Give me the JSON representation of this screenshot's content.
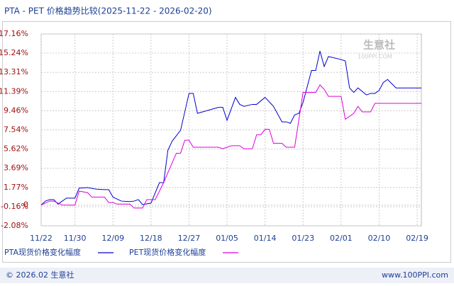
{
  "chart_data": {
    "type": "line",
    "title": "PTA - PET 价格趋势比较(2025-11-22 - 2026-02-20)",
    "watermark": "生意社",
    "watermark_sub": "100PPI.COM",
    "footer_left": "© 2026.02 生意社",
    "footer_right": "www.100PPI.com",
    "xlim": [
      0,
      90
    ],
    "xticks": [
      {
        "value": 0,
        "label": "11/22"
      },
      {
        "value": 8,
        "label": "11/30"
      },
      {
        "value": 17,
        "label": "12/09"
      },
      {
        "value": 26,
        "label": "12/18"
      },
      {
        "value": 35,
        "label": "12/27"
      },
      {
        "value": 44,
        "label": "01/05"
      },
      {
        "value": 53,
        "label": "01/14"
      },
      {
        "value": 62,
        "label": "01/23"
      },
      {
        "value": 71,
        "label": "02/01"
      },
      {
        "value": 80,
        "label": "02/10"
      },
      {
        "value": 89,
        "label": "02/19"
      }
    ],
    "ylim": [
      -2.08,
      17.16
    ],
    "yticks": [
      {
        "value": 17.16,
        "label": "17.16%"
      },
      {
        "value": 15.24,
        "label": "15.24%"
      },
      {
        "value": 13.31,
        "label": "13.31%"
      },
      {
        "value": 11.39,
        "label": "11.39%"
      },
      {
        "value": 9.46,
        "label": "9.46%"
      },
      {
        "value": 7.54,
        "label": "7.54%"
      },
      {
        "value": 5.62,
        "label": "5.62%"
      },
      {
        "value": 3.69,
        "label": "3.69%"
      },
      {
        "value": 1.77,
        "label": "1.77%"
      },
      {
        "value": 0,
        "label": "0"
      },
      {
        "value": -0.16,
        "label": "-0.16%"
      },
      {
        "value": -2.08,
        "label": "-2.08%"
      }
    ],
    "grid": true,
    "series": [
      {
        "name": "PTA现货价格变化幅度",
        "color": "#0000cc",
        "x": [
          0,
          1,
          2,
          3,
          4,
          6,
          8,
          9,
          11,
          13,
          15,
          16,
          17,
          19,
          21,
          22,
          23,
          24,
          26,
          28,
          29,
          30,
          31,
          33,
          35,
          36,
          37,
          42,
          43,
          44,
          46,
          47,
          48,
          50,
          51,
          53,
          55,
          57,
          58,
          59,
          60,
          61,
          62,
          64,
          65,
          66,
          67,
          68,
          71,
          72,
          73,
          74,
          75,
          77,
          78,
          79,
          80,
          81,
          82,
          84,
          88,
          90
        ],
        "values": [
          0,
          0.4,
          0.55,
          0.55,
          0.1,
          0.7,
          0.7,
          1.7,
          1.75,
          1.6,
          1.55,
          1.55,
          0.8,
          0.4,
          0.35,
          0.4,
          0.55,
          0.05,
          0.2,
          2.25,
          2.25,
          5.5,
          6.4,
          7.5,
          11.2,
          11.2,
          9.2,
          9.8,
          9.8,
          8.5,
          10.8,
          10.1,
          9.9,
          10.1,
          10.1,
          10.8,
          9.9,
          8.35,
          8.35,
          8.2,
          9.05,
          9.2,
          10.3,
          13.5,
          13.5,
          15.45,
          13.9,
          14.9,
          14.6,
          14.45,
          11.75,
          11.3,
          11.75,
          11.05,
          11.2,
          11.2,
          11.5,
          12.3,
          12.6,
          11.75,
          11.75,
          11.75
        ]
      },
      {
        "name": "PET现货价格变化幅度",
        "color": "#dd00dd",
        "x": [
          0,
          2,
          3,
          5,
          8,
          9,
          11,
          12,
          15,
          16,
          17,
          18,
          21,
          22,
          24,
          25,
          27,
          29,
          30,
          32,
          33,
          34,
          35,
          36,
          42,
          43,
          45,
          47,
          48,
          50,
          51,
          52,
          53,
          54,
          55,
          57,
          58,
          60,
          62,
          65,
          66,
          67,
          68,
          71,
          72,
          74,
          75,
          76,
          78,
          79,
          90
        ],
        "values": [
          0,
          0.4,
          0.4,
          0,
          0,
          1.4,
          1.25,
          0.8,
          0.8,
          0.25,
          0.25,
          0.1,
          0.1,
          -0.3,
          -0.3,
          0.55,
          0.55,
          2.25,
          3.25,
          5.2,
          5.2,
          6.5,
          6.5,
          5.8,
          5.8,
          5.65,
          5.95,
          5.95,
          5.65,
          5.65,
          7.05,
          7.05,
          7.6,
          7.6,
          6.2,
          6.2,
          5.8,
          5.8,
          11.3,
          11.3,
          12.05,
          11.6,
          10.9,
          10.9,
          8.6,
          9.2,
          9.9,
          9.35,
          9.35,
          10.2,
          10.2
        ]
      }
    ]
  }
}
